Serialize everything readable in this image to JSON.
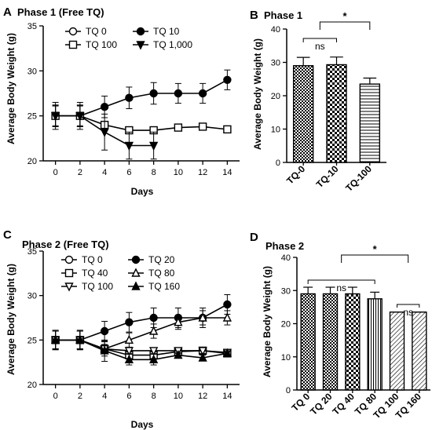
{
  "panels": {
    "A": "A",
    "B": "B",
    "C": "C",
    "D": "D"
  },
  "chart_data": [
    {
      "id": "A",
      "type": "line",
      "title": "Phase 1 (Free TQ)",
      "xlabel": "Days",
      "ylabel": "Average Body Weight (g)",
      "xlim": [
        -1,
        15
      ],
      "ylim": [
        20,
        35
      ],
      "xticks": [
        0,
        2,
        4,
        6,
        8,
        10,
        12,
        14
      ],
      "yticks": [
        20,
        25,
        30,
        35
      ],
      "legend_placement": "top-left",
      "series": [
        {
          "name": "TQ 0",
          "marker": "circle-open",
          "x": [
            0,
            2
          ],
          "y": [
            25,
            25
          ],
          "err": [
            1.2,
            1.2
          ]
        },
        {
          "name": "TQ 10",
          "marker": "circle-filled",
          "x": [
            0,
            2,
            4,
            6,
            8,
            10,
            12,
            14
          ],
          "y": [
            25,
            25,
            26,
            27,
            27.5,
            27.5,
            27.5,
            29
          ],
          "err": [
            1.1,
            1.1,
            1.2,
            1.2,
            1.2,
            1.1,
            1.1,
            1.1
          ]
        },
        {
          "name": "TQ 100",
          "marker": "square-open",
          "x": [
            0,
            2,
            4,
            6,
            8,
            10,
            12,
            14
          ],
          "y": [
            25,
            25,
            24,
            23.4,
            23.4,
            23.7,
            23.8,
            23.5
          ],
          "err": [
            1.5,
            1.5,
            0.4,
            0.3,
            0.3,
            0.2,
            0.2,
            0.2
          ]
        },
        {
          "name": "TQ 1,000",
          "marker": "triangle-down-filled",
          "x": [
            0,
            2,
            4,
            6,
            8
          ],
          "y": [
            25,
            25,
            23.2,
            21.7,
            21.7
          ],
          "err": [
            1.2,
            1.2,
            2.0,
            1.5,
            1.5
          ]
        }
      ]
    },
    {
      "id": "B",
      "type": "bar",
      "title": "Phase 1",
      "xlabel": "",
      "ylabel": "Average Body Weight (g)",
      "ylim": [
        0,
        40
      ],
      "yticks": [
        0,
        10,
        20,
        30,
        40
      ],
      "categories": [
        "TQ-0",
        "TQ-10",
        "TQ-100"
      ],
      "values": [
        29,
        29.3,
        23.5
      ],
      "errors": [
        2.5,
        2.3,
        1.8
      ],
      "patterns": [
        "checker-small",
        "checker-large",
        "horizontal-lines"
      ],
      "annotations": [
        {
          "text": "ns",
          "from": 0,
          "to": 1
        },
        {
          "text": "*",
          "from": 0.5,
          "to": 2
        }
      ]
    },
    {
      "id": "C",
      "type": "line",
      "title": "Phase 2 (Free TQ)",
      "xlabel": "Days",
      "ylabel": "Average Body Weight (g)",
      "xlim": [
        -1,
        15
      ],
      "ylim": [
        20,
        35
      ],
      "xticks": [
        0,
        2,
        4,
        6,
        8,
        10,
        12,
        14
      ],
      "yticks": [
        20,
        25,
        30,
        35
      ],
      "legend_placement": "top-left",
      "series": [
        {
          "name": "TQ 0",
          "marker": "circle-open",
          "x": [
            0,
            2
          ],
          "y": [
            25,
            25
          ],
          "err": [
            1.0,
            1.0
          ]
        },
        {
          "name": "TQ 20",
          "marker": "circle-filled",
          "x": [
            0,
            2,
            4,
            6,
            8,
            10,
            12,
            14
          ],
          "y": [
            25,
            25,
            26,
            27,
            27.5,
            27.5,
            27.5,
            29
          ],
          "err": [
            1.1,
            1.1,
            1.1,
            1.1,
            1.1,
            1.1,
            1.1,
            1.1
          ]
        },
        {
          "name": "TQ 40",
          "marker": "square-open",
          "x": [
            0,
            2,
            4,
            6,
            8,
            10,
            12,
            14
          ],
          "y": [
            25,
            25,
            24,
            23.3,
            23.3,
            23.7,
            23.8,
            23.5
          ],
          "err": [
            1.0,
            1.0,
            0.5,
            0.4,
            0.4,
            0.3,
            0.3,
            0.3
          ]
        },
        {
          "name": "TQ 80",
          "marker": "triangle-up-open",
          "x": [
            0,
            2,
            4,
            6,
            8,
            10,
            12,
            14
          ],
          "y": [
            25,
            25,
            24,
            25,
            26,
            27,
            27.5,
            27.5
          ],
          "err": [
            1.0,
            1.0,
            0.8,
            0.8,
            0.8,
            0.8,
            0.8,
            0.8
          ]
        },
        {
          "name": "TQ 100",
          "marker": "triangle-down-open",
          "x": [
            0,
            2,
            4,
            6,
            8,
            10,
            12,
            14
          ],
          "y": [
            25,
            25,
            24,
            23.8,
            23.8,
            23.8,
            23.8,
            23.6
          ],
          "err": [
            1.0,
            1.0,
            0.4,
            0.3,
            0.3,
            0.3,
            0.3,
            0.3
          ]
        },
        {
          "name": "TQ 160",
          "marker": "triangle-up-filled",
          "x": [
            0,
            2,
            4,
            6,
            8,
            10,
            12,
            14
          ],
          "y": [
            25,
            25,
            23.8,
            22.8,
            22.8,
            23.3,
            23.0,
            23.5
          ],
          "err": [
            1.0,
            1.0,
            1.2,
            0.6,
            0.6,
            0.3,
            0.3,
            0.3
          ]
        }
      ]
    },
    {
      "id": "D",
      "type": "bar",
      "title": "Phase 2",
      "xlabel": "",
      "ylabel": "Average Body Weight (g)",
      "ylim": [
        0,
        40
      ],
      "yticks": [
        0,
        10,
        20,
        30,
        40
      ],
      "categories": [
        "TQ 0",
        "TQ 20",
        "TQ 40",
        "TQ 80",
        "TQ 100",
        "TQ 160"
      ],
      "values": [
        29,
        29,
        29,
        27.5,
        23.5,
        23.5
      ],
      "errors": [
        2.0,
        2.0,
        2.0,
        2.0,
        0,
        0
      ],
      "patterns": [
        "checker-small",
        "checker-small",
        "checker-large",
        "vertical-lines",
        "diagonal-lines",
        "diagonal-lines"
      ],
      "annotations": [
        {
          "text": "ns",
          "from": 0,
          "to": 3
        },
        {
          "text": "ns",
          "from": 4,
          "to": 5
        },
        {
          "text": "*",
          "from": 1.5,
          "to": 4.5
        }
      ]
    }
  ]
}
